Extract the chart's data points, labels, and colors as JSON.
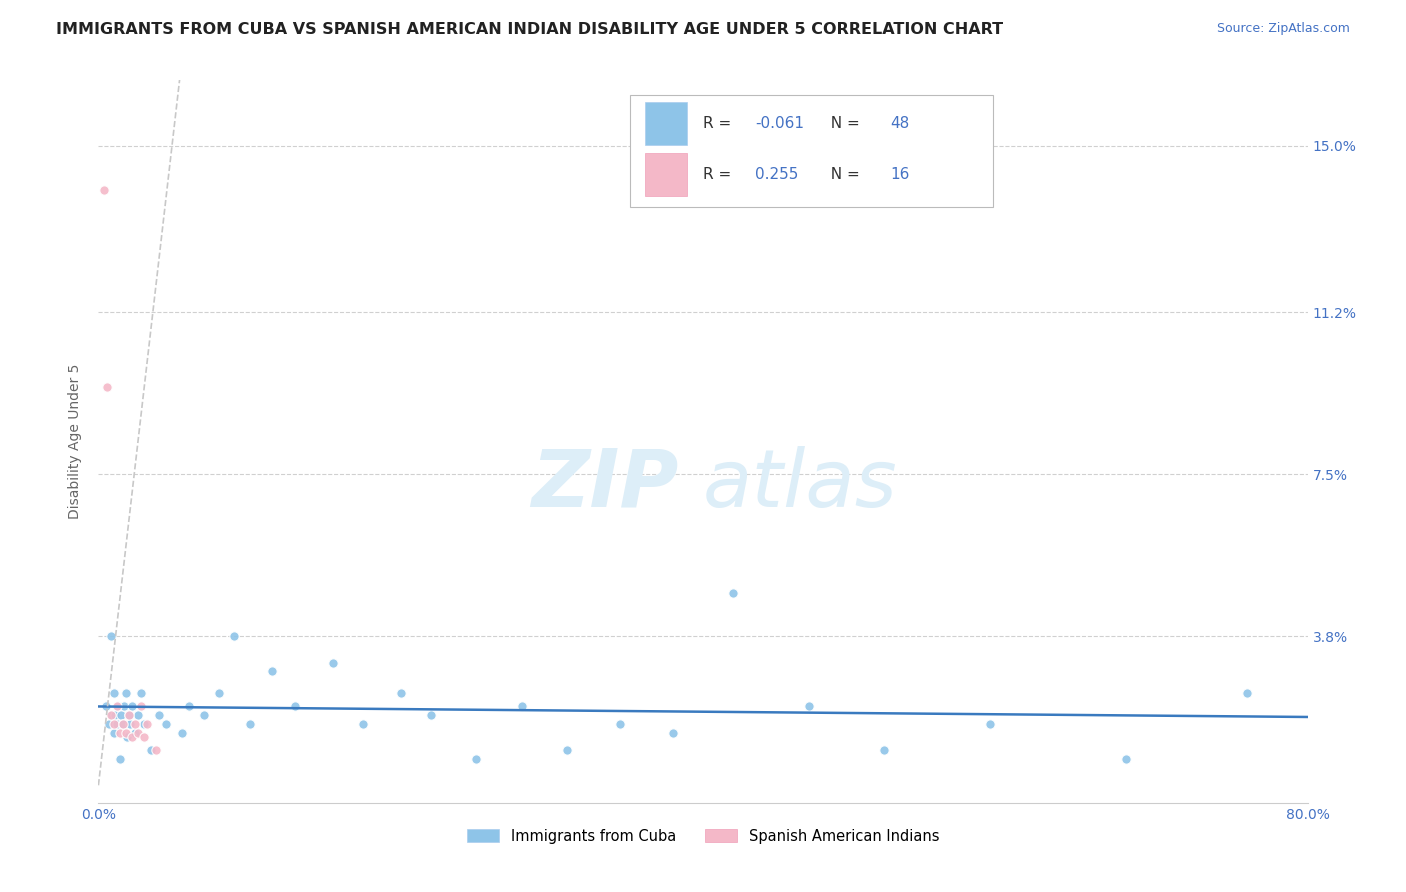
{
  "title": "IMMIGRANTS FROM CUBA VS SPANISH AMERICAN INDIAN DISABILITY AGE UNDER 5 CORRELATION CHART",
  "source": "Source: ZipAtlas.com",
  "ylabel": "Disability Age Under 5",
  "legend_label_1": "Immigrants from Cuba",
  "legend_label_2": "Spanish American Indians",
  "r1": -0.061,
  "n1": 48,
  "r2": 0.255,
  "n2": 16,
  "color1": "#8ec4e8",
  "color2": "#f4b8c8",
  "trendline1_color": "#3a7abf",
  "trendline2_color": "#c8c8c8",
  "watermark_zip": "ZIP",
  "watermark_atlas": "atlas",
  "watermark_color": "#ddeef8",
  "xlim": [
    0.0,
    0.8
  ],
  "ylim": [
    0.0,
    0.165
  ],
  "yticks": [
    0.0,
    0.038,
    0.075,
    0.112,
    0.15
  ],
  "ytick_labels": [
    "",
    "3.8%",
    "7.5%",
    "11.2%",
    "15.0%"
  ],
  "xticks": [
    0.0,
    0.1,
    0.2,
    0.3,
    0.4,
    0.5,
    0.6,
    0.7,
    0.8
  ],
  "xtick_labels": [
    "0.0%",
    "",
    "",
    "",
    "",
    "",
    "",
    "",
    "80.0%"
  ],
  "blue_scatter_x": [
    0.005,
    0.007,
    0.008,
    0.009,
    0.01,
    0.01,
    0.011,
    0.012,
    0.013,
    0.014,
    0.015,
    0.016,
    0.017,
    0.018,
    0.019,
    0.02,
    0.021,
    0.022,
    0.024,
    0.026,
    0.028,
    0.03,
    0.035,
    0.04,
    0.045,
    0.055,
    0.06,
    0.07,
    0.08,
    0.09,
    0.1,
    0.115,
    0.13,
    0.155,
    0.175,
    0.2,
    0.22,
    0.25,
    0.28,
    0.31,
    0.345,
    0.38,
    0.42,
    0.47,
    0.52,
    0.59,
    0.68,
    0.76
  ],
  "blue_scatter_y": [
    0.022,
    0.018,
    0.038,
    0.02,
    0.025,
    0.016,
    0.02,
    0.018,
    0.022,
    0.01,
    0.02,
    0.018,
    0.022,
    0.025,
    0.015,
    0.02,
    0.018,
    0.022,
    0.016,
    0.02,
    0.025,
    0.018,
    0.012,
    0.02,
    0.018,
    0.016,
    0.022,
    0.02,
    0.025,
    0.038,
    0.018,
    0.03,
    0.022,
    0.032,
    0.018,
    0.025,
    0.02,
    0.01,
    0.022,
    0.012,
    0.018,
    0.016,
    0.048,
    0.022,
    0.012,
    0.018,
    0.01,
    0.025
  ],
  "pink_scatter_x": [
    0.004,
    0.006,
    0.008,
    0.01,
    0.012,
    0.014,
    0.016,
    0.018,
    0.02,
    0.022,
    0.024,
    0.026,
    0.028,
    0.03,
    0.032,
    0.038
  ],
  "pink_scatter_y": [
    0.14,
    0.095,
    0.02,
    0.018,
    0.022,
    0.016,
    0.018,
    0.016,
    0.02,
    0.015,
    0.018,
    0.016,
    0.022,
    0.015,
    0.018,
    0.012
  ],
  "grid_color": "#d0d0d0",
  "title_fontsize": 11.5,
  "tick_fontsize": 10,
  "axis_color": "#4472c4",
  "label_color": "#666666",
  "background_color": "#ffffff"
}
